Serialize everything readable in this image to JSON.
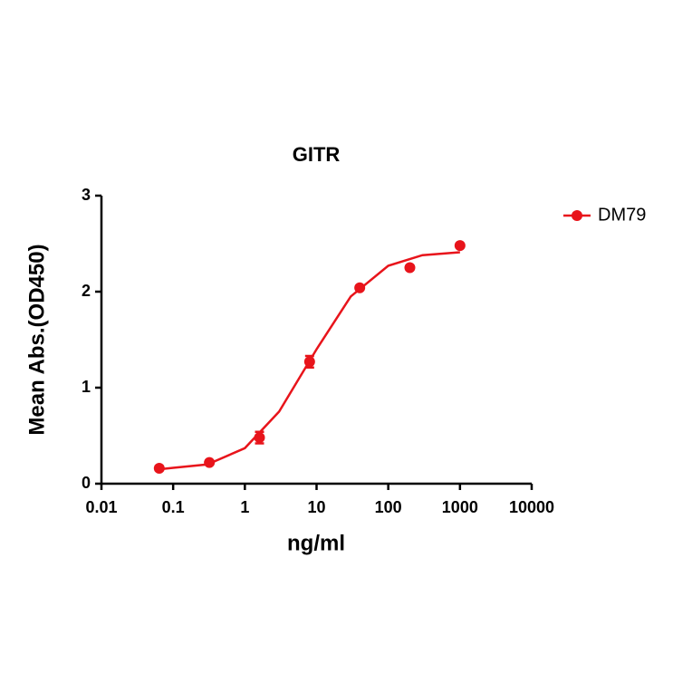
{
  "chart_data": {
    "type": "scatter",
    "title": "GITR",
    "x_label": "ng/ml",
    "y_label": "Mean Abs.(OD450)",
    "log_x": true,
    "xlim": [
      0.01,
      10000
    ],
    "xticks": [
      0.01,
      0.1,
      1,
      10,
      100,
      1000,
      10000
    ],
    "ylim": [
      0,
      3
    ],
    "yticks": [
      0,
      1,
      2,
      3
    ],
    "legend": "top-right",
    "series": [
      {
        "name": "DM79",
        "color": "#e8141b",
        "x": [
          0.064,
          0.32,
          1.6,
          8,
          40,
          200,
          1000
        ],
        "values": [
          0.16,
          0.22,
          0.48,
          1.27,
          2.04,
          2.25,
          2.48
        ],
        "errors": [
          0.02,
          0.02,
          0.06,
          0.06,
          0.02,
          0.02,
          0.02
        ]
      }
    ],
    "fit": {
      "color": "#e8141b",
      "x": [
        0.064,
        0.1,
        0.3,
        1,
        3,
        10,
        30,
        100,
        300,
        1000
      ],
      "values": [
        0.15,
        0.165,
        0.2,
        0.37,
        0.75,
        1.4,
        1.95,
        2.27,
        2.38,
        2.41
      ]
    }
  }
}
